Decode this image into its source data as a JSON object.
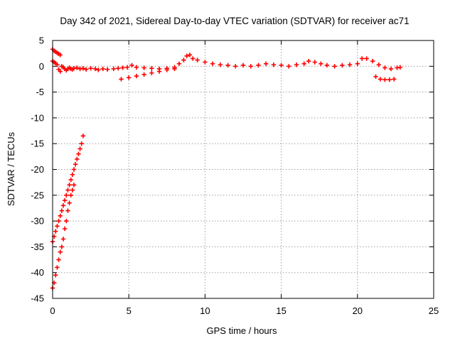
{
  "chart_data": {
    "type": "scatter",
    "title": "Day 342 of 2021, Sidereal Day-to-day VTEC variation (SDTVAR) for receiver ac71",
    "xlabel": "GPS time / hours",
    "ylabel": "SDTVAR / TECUs",
    "xlim": [
      0,
      25
    ],
    "ylim": [
      -45,
      5
    ],
    "xticks": [
      0,
      5,
      10,
      15,
      20,
      25
    ],
    "yticks": [
      5,
      0,
      -5,
      -10,
      -15,
      -20,
      -25,
      -30,
      -35,
      -40,
      -45
    ],
    "grid": true,
    "marker": "plus",
    "color": "#ff0000",
    "series": [
      {
        "name": "SDTVAR",
        "x": [
          0.0,
          0.1,
          0.2,
          0.3,
          0.4,
          0.5,
          0.0,
          0.1,
          0.2,
          0.3,
          0.4,
          0.5,
          0.6,
          0.7,
          0.8,
          0.9,
          1.0,
          1.1,
          1.2,
          1.3,
          1.4,
          1.6,
          1.8,
          2.0,
          2.2,
          2.5,
          2.8,
          3.0,
          3.3,
          3.6,
          4.0,
          4.3,
          4.6,
          4.9,
          5.2,
          5.5,
          6.0,
          6.5,
          7.0,
          7.5,
          8.0,
          8.3,
          8.6,
          8.8,
          9.0,
          9.2,
          9.5,
          10.0,
          10.5,
          11.0,
          11.5,
          12.0,
          12.5,
          13.0,
          13.5,
          14.0,
          14.5,
          15.0,
          15.5,
          16.0,
          16.5,
          16.8,
          17.2,
          17.6,
          18.0,
          18.5,
          19.0,
          19.5,
          20.0,
          20.3,
          20.6,
          21.0,
          21.4,
          21.8,
          22.2,
          22.6,
          22.8,
          4.5,
          5.0,
          5.5,
          6.0,
          6.5,
          7.0,
          7.5,
          8.0,
          21.2,
          21.5,
          21.8,
          22.1,
          22.4,
          0.0,
          0.1,
          0.2,
          0.3,
          0.4,
          0.5,
          0.6,
          0.7,
          0.8,
          0.9,
          1.0,
          1.1,
          1.2,
          1.3,
          1.4,
          1.5,
          1.6,
          1.7,
          1.8,
          1.9,
          2.0,
          0.0,
          0.1,
          0.2,
          0.3,
          0.4,
          0.5,
          0.6,
          0.7,
          0.8,
          0.9,
          1.0,
          1.1,
          1.2,
          1.3,
          1.4
        ],
        "y": [
          3.3,
          3.0,
          2.8,
          2.6,
          2.4,
          2.2,
          1.0,
          0.8,
          0.6,
          0.3,
          -0.6,
          -1.0,
          0.0,
          -0.2,
          -0.5,
          -0.8,
          -0.5,
          -0.3,
          -0.5,
          -0.6,
          -0.4,
          -0.3,
          -0.5,
          -0.4,
          -0.6,
          -0.4,
          -0.5,
          -0.7,
          -0.5,
          -0.6,
          -0.5,
          -0.4,
          -0.3,
          -0.2,
          0.2,
          -0.2,
          -0.3,
          -0.4,
          -0.5,
          -0.4,
          -0.2,
          0.5,
          1.2,
          2.0,
          2.2,
          1.5,
          1.2,
          0.8,
          0.5,
          0.3,
          0.2,
          0.0,
          0.2,
          0.0,
          0.2,
          0.5,
          0.3,
          0.2,
          0.0,
          0.3,
          0.5,
          1.0,
          0.8,
          0.5,
          0.2,
          0.0,
          0.2,
          0.3,
          0.5,
          1.5,
          1.5,
          1.0,
          0.3,
          -0.3,
          -0.5,
          -0.3,
          -0.2,
          -2.5,
          -2.2,
          -1.9,
          -1.6,
          -1.3,
          -1.0,
          -0.7,
          -0.5,
          -2.0,
          -2.5,
          -2.6,
          -2.6,
          -2.5,
          -34.0,
          -33.0,
          -32.0,
          -31.0,
          -30.0,
          -29.0,
          -28.0,
          -27.0,
          -26.0,
          -25.0,
          -24.0,
          -23.0,
          -22.0,
          -21.0,
          -20.0,
          -19.0,
          -18.0,
          -17.0,
          -16.0,
          -15.0,
          -13.5,
          -43.0,
          -42.0,
          -40.5,
          -39.0,
          -37.5,
          -36.0,
          -35.0,
          -33.5,
          -31.5,
          -30.0,
          -28.0,
          -26.5,
          -25.0,
          -24.0,
          -23.0
        ]
      }
    ]
  }
}
